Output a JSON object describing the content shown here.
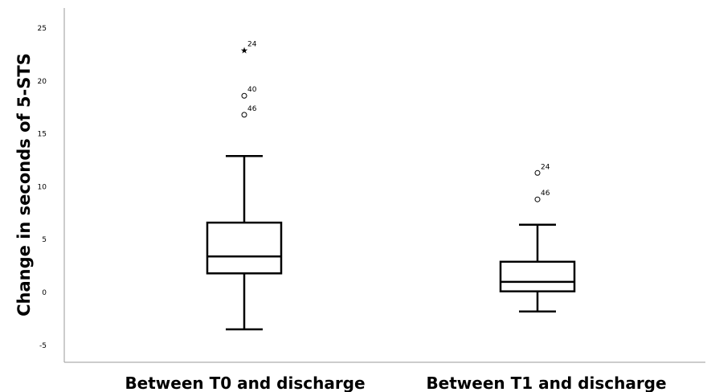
{
  "chart_data": {
    "type": "boxplot",
    "title": "",
    "xlabel": "",
    "ylabel": "Change in seconds of 5-STS",
    "ylim": [
      -6.5,
      26.5
    ],
    "yticks": [
      -5,
      0,
      5,
      10,
      15,
      20,
      25
    ],
    "ytick_labels": [
      "-5",
      "0",
      "5",
      "10",
      "15",
      "20",
      "25"
    ],
    "grid": false,
    "categories": [
      "Between T0 and discharge",
      "Between T1 and discharge"
    ],
    "boxes": [
      {
        "category": "Between T0 and discharge",
        "whisker_low": -3.5,
        "q1": 1.8,
        "median": 3.4,
        "q3": 6.6,
        "whisker_high": 12.9,
        "outliers": [
          {
            "id": "24",
            "value": 22.9,
            "marker": "star"
          },
          {
            "id": "40",
            "value": 18.6,
            "marker": "circle"
          },
          {
            "id": "46",
            "value": 16.8,
            "marker": "circle"
          }
        ]
      },
      {
        "category": "Between T1 and discharge",
        "whisker_low": -1.8,
        "q1": 0.1,
        "median": 1.0,
        "q3": 2.9,
        "whisker_high": 6.4,
        "outliers": [
          {
            "id": "24",
            "value": 11.3,
            "marker": "circle"
          },
          {
            "id": "46",
            "value": 8.8,
            "marker": "circle"
          }
        ]
      }
    ]
  }
}
